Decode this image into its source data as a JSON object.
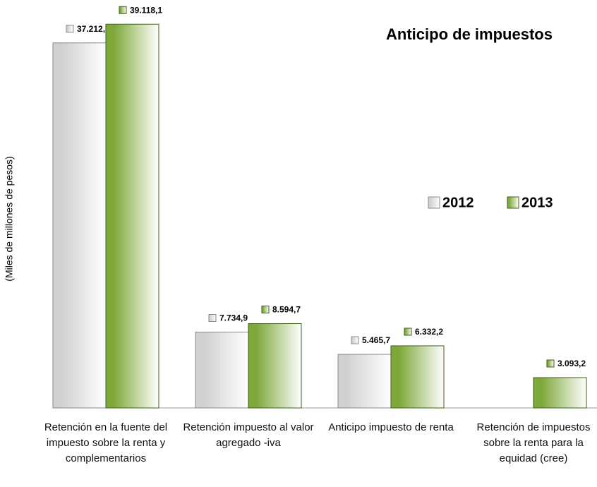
{
  "chart_data": {
    "type": "bar",
    "title": "Anticipo de impuestos",
    "ylabel": "(Miles de millones de pesos)",
    "categories": [
      "Retención en la fuente del impuesto sobre la renta y complementarios",
      "Retención impuesto al valor agregado -iva",
      "Anticipo impuesto de renta",
      "Retención de impuestos sobre la renta para la equidad (cree)"
    ],
    "series": [
      {
        "name": "2012",
        "color": "#d0d0d0",
        "values": [
          37212.5,
          7734.9,
          5465.7,
          null
        ],
        "value_labels": [
          "37.212,5",
          "7.734,9",
          "5.465,7",
          null
        ]
      },
      {
        "name": "2013",
        "color": "#7ea83a",
        "values": [
          39118.1,
          8594.7,
          6332.2,
          3093.2
        ],
        "value_labels": [
          "39.118,1",
          "8.594,7",
          "6.332,2",
          "3.093,2"
        ]
      }
    ],
    "ylim": [
      0,
      40000
    ],
    "legend": "right"
  }
}
